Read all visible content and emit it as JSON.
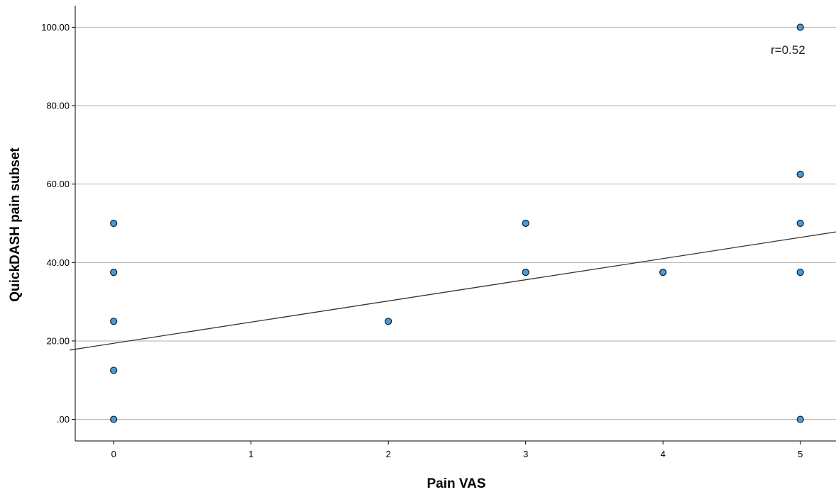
{
  "chart_data": {
    "type": "scatter",
    "xlabel": "Pain VAS",
    "ylabel": "QuickDASH pain subset",
    "xlim": [
      -0.28,
      5.26
    ],
    "ylim": [
      -5.5,
      105.5
    ],
    "x_ticks": [
      0,
      1,
      2,
      3,
      4,
      5
    ],
    "x_tick_labels": [
      "0",
      "1",
      "2",
      "3",
      "4",
      "5"
    ],
    "y_ticks": [
      0,
      20,
      40,
      60,
      80,
      100
    ],
    "y_tick_labels": [
      ".00",
      "20.00",
      "40.00",
      "60.00",
      "80.00",
      "100.00"
    ],
    "grid": "horizontal",
    "points": [
      {
        "x": 0,
        "y": 50.0
      },
      {
        "x": 0,
        "y": 37.5
      },
      {
        "x": 0,
        "y": 25.0
      },
      {
        "x": 0,
        "y": 12.5
      },
      {
        "x": 0,
        "y": 0.0
      },
      {
        "x": 2,
        "y": 25.0
      },
      {
        "x": 3,
        "y": 50.0
      },
      {
        "x": 3,
        "y": 37.5
      },
      {
        "x": 4,
        "y": 37.5
      },
      {
        "x": 5,
        "y": 100.0
      },
      {
        "x": 5,
        "y": 62.5
      },
      {
        "x": 5,
        "y": 50.0
      },
      {
        "x": 5,
        "y": 37.5
      },
      {
        "x": 5,
        "y": 0.0
      }
    ],
    "fit_line": {
      "intercept": 19.4,
      "slope": 5.4
    },
    "annotation": "r=0.52",
    "colors": {
      "point_fill": "#3d9ee6",
      "point_stroke": "#1a1a1a",
      "grid": "#b0b0b0",
      "fit_line": "#333333"
    }
  }
}
